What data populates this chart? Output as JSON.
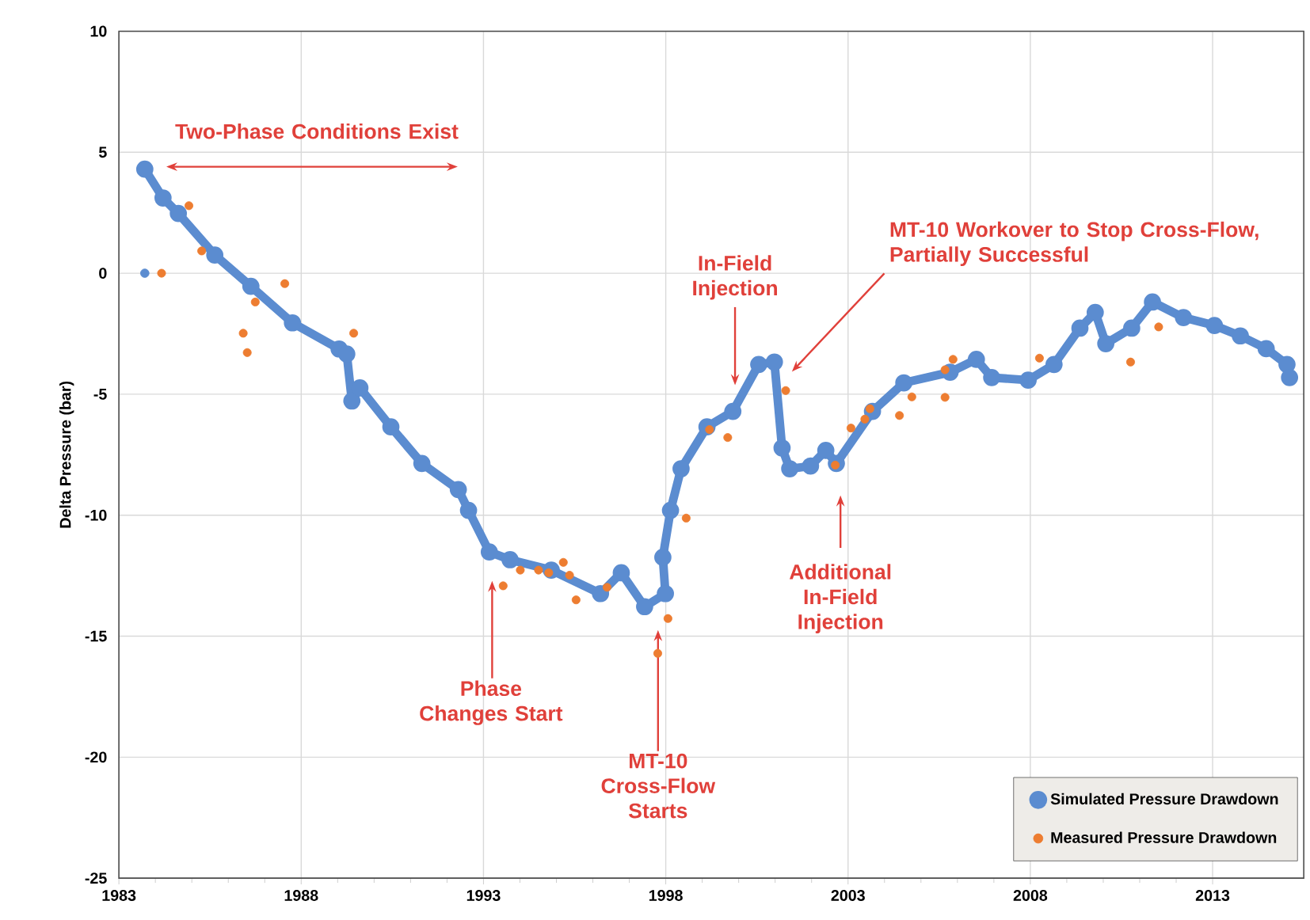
{
  "chart_data": {
    "type": "scatter",
    "ylabel": "Delta Pressure (bar)",
    "xlim": [
      1983,
      2015.5
    ],
    "ylim": [
      -25,
      10
    ],
    "xticks": [
      1983,
      1988,
      1993,
      1998,
      2003,
      2008,
      2013
    ],
    "yticks": [
      -25,
      -20,
      -15,
      -10,
      -5,
      0,
      5,
      10
    ],
    "grid": true,
    "legend": "bottom right",
    "marker": "circle",
    "series": [
      {
        "type": "scatter",
        "color": "#5b8cd0",
        "x": [
          1983.71
        ],
        "values": [
          0.0
        ]
      },
      {
        "name": "Simulated Pressure Drawdown",
        "type": "line",
        "color": "#5b8cd0",
        "x": [
          1983.71,
          1984.21,
          1984.63,
          1985.63,
          1986.62,
          1987.76,
          1989.04,
          1989.25,
          1989.39,
          1989.61,
          1990.46,
          1991.31,
          1992.31,
          1992.59,
          1993.16,
          1993.73,
          1994.86,
          1996.21,
          1996.78,
          1997.42,
          1997.99,
          1997.92,
          1998.13,
          1998.42,
          1999.13,
          1999.84,
          2000.55,
          2000.98,
          2001.19,
          2001.4,
          2001.97,
          2002.39,
          2002.68,
          2003.67,
          2004.53,
          2005.8,
          2006.52,
          2006.94,
          2007.94,
          2008.65,
          2009.36,
          2009.78,
          2010.07,
          2010.78,
          2011.35,
          2012.2,
          2013.05,
          2013.76,
          2014.47,
          2015.04,
          2015.11
        ],
        "values": [
          4.3,
          3.11,
          2.47,
          0.75,
          -0.54,
          -2.05,
          -3.13,
          -3.34,
          -5.28,
          -4.74,
          -6.35,
          -7.86,
          -8.94,
          -9.8,
          -11.52,
          -11.84,
          -12.27,
          -13.24,
          -12.38,
          -13.78,
          -13.24,
          -11.74,
          -9.8,
          -8.08,
          -6.35,
          -5.71,
          -3.77,
          -3.67,
          -7.22,
          -8.08,
          -7.97,
          -7.32,
          -7.86,
          -5.71,
          -4.53,
          -4.09,
          -3.56,
          -4.31,
          -4.42,
          -3.77,
          -2.27,
          -1.62,
          -2.91,
          -2.27,
          -1.19,
          -1.83,
          -2.16,
          -2.59,
          -3.12,
          -3.77,
          -4.31
        ]
      },
      {
        "name": "Measured Pressure Drawdown",
        "type": "scatter",
        "color": "#ed7d31",
        "x": [
          1984.17,
          1984.92,
          1985.27,
          1986.41,
          1986.52,
          1986.74,
          1987.55,
          1989.44,
          1993.54,
          1994.01,
          1994.51,
          1994.79,
          1995.19,
          1995.36,
          1995.54,
          1996.39,
          1997.78,
          1998.06,
          1998.56,
          1999.2,
          1999.7,
          2001.29,
          2002.65,
          2003.08,
          2003.46,
          2003.6,
          2004.41,
          2004.75,
          2005.66,
          2005.66,
          2005.88,
          2008.25,
          2010.75,
          2011.52
        ],
        "values": [
          0.0,
          2.79,
          0.92,
          -2.48,
          -3.28,
          -1.19,
          -0.43,
          -2.48,
          -12.92,
          -12.27,
          -12.27,
          -12.38,
          -11.95,
          -12.48,
          -13.5,
          -12.98,
          -15.71,
          -14.27,
          -10.12,
          -6.46,
          -6.79,
          -4.85,
          -7.93,
          -6.4,
          -6.03,
          -5.6,
          -5.88,
          -5.11,
          -5.13,
          -3.99,
          -3.56,
          -3.51,
          -3.67,
          -2.22
        ]
      }
    ],
    "annotations": [
      "Two-Phase Conditions Exist",
      "Phase Changes Start",
      "MT-10 Cross-Flow Starts",
      {
        "text": "In-Field Injection",
        "x": 1999.9,
        "y": -4.63
      },
      "MT-10 Workover to Stop Cross-Flow, Partially Successful",
      "Additional In-Field Injection"
    ]
  }
}
